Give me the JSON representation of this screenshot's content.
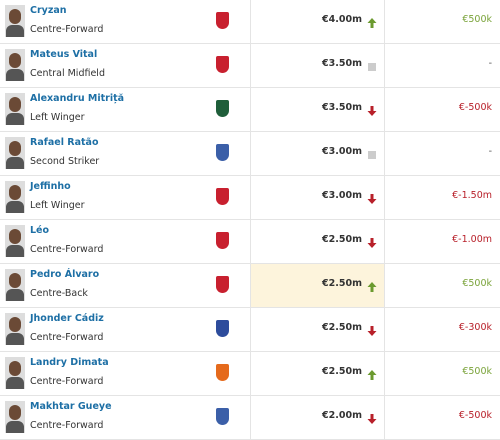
{
  "table": {
    "rows": [
      {
        "name": "Cryzan",
        "position": "Centre-Forward",
        "value": "€4.00m",
        "change": "€500k"
      },
      {
        "name": "Mateus Vital",
        "position": "Central Midfield",
        "value": "€3.50m",
        "change": "-"
      },
      {
        "name": "Alexandru Mitriță",
        "position": "Left Winger",
        "value": "€3.50m",
        "change": "€-500k"
      },
      {
        "name": "Rafael Ratão",
        "position": "Second Striker",
        "value": "€3.00m",
        "change": "-"
      },
      {
        "name": "Jeffinho",
        "position": "Left Winger",
        "value": "€3.00m",
        "change": "€-1.50m"
      },
      {
        "name": "Léo",
        "position": "Centre-Forward",
        "value": "€2.50m",
        "change": "€-1.00m"
      },
      {
        "name": "Pedro Álvaro",
        "position": "Centre-Back",
        "value": "€2.50m",
        "change": "€500k"
      },
      {
        "name": "Jhonder Cádiz",
        "position": "Centre-Forward",
        "value": "€2.50m",
        "change": "€-300k"
      },
      {
        "name": "Landry Dimata",
        "position": "Centre-Forward",
        "value": "€2.50m",
        "change": "€500k"
      },
      {
        "name": "Makhtar Gueye",
        "position": "Centre-Forward",
        "value": "€2.00m",
        "change": "€-500k"
      }
    ]
  }
}
